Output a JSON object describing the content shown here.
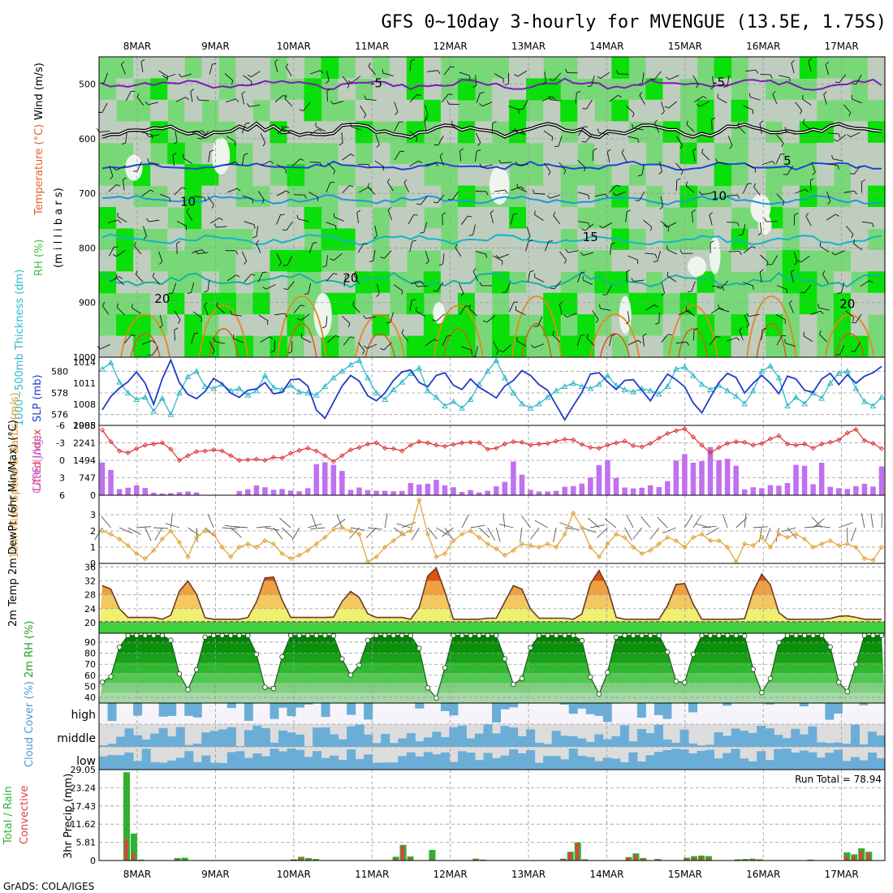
{
  "title": "GFS 0~10day 3-hourly for MVENGUE (13.5E, 1.75S)",
  "credit": "GrADS: COLA/IGES",
  "run_total_label": "Run Total = 78.94",
  "colors": {
    "rh_light": "#78d878",
    "rh_bright": "#00e000",
    "rh_dark": "#22a022",
    "rh_gray": "#c4ccc4",
    "temp_zero": "#000000",
    "temp_purple": "#7a1fb0",
    "temp_blue": "#1e46d0",
    "temp_sky": "#1e96e0",
    "temp_cyan": "#14b4c8",
    "temp_teal": "#14b49a",
    "temp_orange": "#e08a1e",
    "thickness": "#30b8c8",
    "slp": "#1e3cc8",
    "lifted_index": "#e03030",
    "cape": "#c070f0",
    "wind10": "#e0a030",
    "temp_fill_high": "#e05010",
    "temp_fill_mid": "#f0a040",
    "temp_fill_low": "#f0f070",
    "temp_green": "#40d040",
    "rh2m_dark": "#008800",
    "rh2m_light": "#a8e8a8",
    "cloud": "#6aaed8",
    "cloud_bg": "#dcdcdc",
    "precip_total": "#30b030",
    "precip_conv": "#e04040"
  },
  "chart_data": [
    {
      "panel": "upper-air",
      "type": "heatmap",
      "x_dates": [
        "8MAR",
        "9MAR",
        "10MAR",
        "11MAR",
        "12MAR",
        "13MAR",
        "14MAR",
        "15MAR",
        "16MAR",
        "17MAR"
      ],
      "ylabel_rh": "RH (%)",
      "ylabel_temp": "Temperature (°C)",
      "ylabel_wind": "Wind (m/s)",
      "ylabel_pressure": "(m i l l i b a r s)",
      "yticks": [
        500,
        600,
        700,
        800,
        900,
        1000
      ],
      "ylim": [
        1000,
        450
      ],
      "contour_labels": [
        {
          "text": "-5",
          "t": 32,
          "p": 498
        },
        {
          "text": "-5",
          "t": 72,
          "p": 497
        },
        {
          "text": "5",
          "t": 80,
          "p": 640
        },
        {
          "text": "10",
          "t": 10,
          "p": 715
        },
        {
          "text": "10",
          "t": 72,
          "p": 705
        },
        {
          "text": "15",
          "t": 57,
          "p": 780
        },
        {
          "text": "20",
          "t": 7,
          "p": 893
        },
        {
          "text": "20",
          "t": 29,
          "p": 855
        },
        {
          "text": "20",
          "t": 87,
          "p": 903
        }
      ]
    },
    {
      "panel": "thickness-slp",
      "type": "line",
      "ylabel_thickness": "1000~500mb Thickness (dm)",
      "ylabel_slp": "SLP (mb)",
      "thickness_ticks": [
        576,
        578,
        580
      ],
      "slp_ticks": [
        1005,
        1008,
        1011,
        1014
      ],
      "thickness_ylim": [
        575,
        581.3
      ],
      "slp_ylim": [
        1005,
        1014.7
      ],
      "thickness": [
        580.2,
        580.8,
        579.0,
        578.0,
        577.4,
        577.6,
        576.3,
        577.5,
        576.0,
        578.0,
        579.5,
        580.0,
        578.6,
        578.4,
        578.8,
        578.2,
        578.4,
        577.8,
        578.2,
        579.6,
        578.5,
        578.3,
        578.7,
        578.1,
        578.0,
        577.8,
        578.6,
        579.4,
        580.0,
        580.6,
        581.0,
        579.4,
        578.0,
        577.4,
        578.3,
        579.0,
        579.8,
        580.3,
        578.2,
        577.6,
        576.8,
        577.2,
        576.6,
        577.4,
        578.8,
        580.0,
        581.0,
        579.4,
        578.0,
        577.0,
        576.6,
        577.0,
        577.6,
        578.2,
        578.6,
        578.9,
        578.6,
        578.4,
        578.8,
        579.6,
        578.7,
        578.3,
        578.1,
        578.4,
        578.2,
        577.9,
        578.6,
        580.2,
        580.4,
        579.6,
        578.8,
        578.3,
        578.7,
        578.2,
        577.7,
        577.0,
        578.2,
        580.0,
        580.5,
        579.4,
        576.8,
        577.6,
        577.0,
        578.0,
        577.5,
        578.9,
        579.8,
        580.0,
        578.4,
        577.2,
        576.8,
        577.6
      ],
      "slp": [
        1007.2,
        1009.1,
        1010.3,
        1011.2,
        1012.6,
        1011.0,
        1008.0,
        1011.6,
        1014.3,
        1011.1,
        1009.4,
        1008.8,
        1009.8,
        1011.7,
        1010.9,
        1009.6,
        1009.0,
        1010.0,
        1010.2,
        1011.1,
        1009.5,
        1009.7,
        1011.5,
        1011.6,
        1010.6,
        1007.2,
        1006.0,
        1008.3,
        1010.6,
        1012.1,
        1011.3,
        1009.2,
        1008.5,
        1009.6,
        1011.4,
        1012.6,
        1012.9,
        1011.1,
        1010.5,
        1012.1,
        1012.5,
        1010.7,
        1010.1,
        1011.6,
        1010.4,
        1009.7,
        1008.9,
        1010.6,
        1011.4,
        1012.8,
        1012.1,
        1010.8,
        1010.0,
        1007.9,
        1005.8,
        1007.8,
        1009.7,
        1012.3,
        1012.5,
        1011.2,
        1010.1,
        1011.4,
        1011.5,
        1010.0,
        1008.5,
        1010.5,
        1012.3,
        1011.5,
        1010.5,
        1008.2,
        1006.8,
        1009.0,
        1011.1,
        1012.4,
        1011.8,
        1009.6,
        1011.0,
        1012.1,
        1011.0,
        1009.5,
        1012.0,
        1011.6,
        1010.0,
        1009.7,
        1011.6,
        1012.4,
        1010.8,
        1012.2,
        1011.0,
        1012.0,
        1012.5,
        1013.4
      ]
    },
    {
      "panel": "instability",
      "type": "bar",
      "ylabel_li": "Lifted Index",
      "ylabel_cape": "CAPE (J/kg)",
      "li_ticks": [
        -6,
        -3,
        0,
        3,
        6
      ],
      "cape_ticks": [
        0,
        747,
        1494,
        2241,
        2988
      ],
      "li_ylim": [
        6,
        -6
      ],
      "cape_ylim": [
        0,
        2988
      ],
      "cape": [
        1400,
        1080,
        260,
        320,
        420,
        310,
        110,
        70,
        90,
        130,
        160,
        120,
        0,
        0,
        0,
        0,
        180,
        260,
        420,
        340,
        230,
        270,
        200,
        170,
        300,
        1330,
        1410,
        1300,
        1040,
        230,
        330,
        220,
        190,
        190,
        170,
        180,
        520,
        460,
        490,
        660,
        420,
        340,
        140,
        220,
        120,
        190,
        380,
        570,
        1440,
        880,
        230,
        160,
        160,
        190,
        360,
        390,
        500,
        770,
        1290,
        1510,
        740,
        330,
        290,
        320,
        420,
        350,
        600,
        1480,
        1760,
        1390,
        1460,
        2060,
        1500,
        1560,
        1260,
        250,
        340,
        300,
        430,
        410,
        520,
        1300,
        1260,
        470,
        1390,
        360,
        300,
        270,
        390,
        490,
        370,
        1230
      ],
      "lifted_index": [
        -5.2,
        -3.2,
        -1.6,
        -1.3,
        -2.0,
        -2.6,
        -2.8,
        -3.0,
        -1.9,
        0.0,
        -0.8,
        -1.5,
        -1.6,
        -1.8,
        -1.6,
        -0.8,
        0.0,
        -0.1,
        -0.2,
        0.0,
        -0.5,
        -0.4,
        -1.2,
        -1.7,
        -2.1,
        -1.6,
        -0.8,
        0.2,
        -0.8,
        -1.8,
        -2.2,
        -2.8,
        -3.0,
        -2.1,
        -2.0,
        -1.6,
        -2.6,
        -3.2,
        -3.0,
        -2.6,
        -2.4,
        -2.7,
        -3.0,
        -3.1,
        -3.0,
        -1.9,
        -2.1,
        -2.8,
        -3.2,
        -3.1,
        -2.6,
        -2.8,
        -2.9,
        -3.3,
        -3.6,
        -3.5,
        -2.7,
        -2.2,
        -2.1,
        -2.6,
        -3.0,
        -3.3,
        -2.5,
        -2.3,
        -2.9,
        -3.8,
        -4.6,
        -5.1,
        -5.4,
        -4.0,
        -2.6,
        -1.3,
        -2.2,
        -2.9,
        -3.2,
        -3.1,
        -2.6,
        -2.9,
        -3.7,
        -4.2,
        -2.8,
        -2.6,
        -2.8,
        -2.1,
        -2.8,
        -3.1,
        -3.5,
        -4.7,
        -5.3,
        -3.4,
        -2.9,
        -2.0
      ]
    },
    {
      "panel": "wind10m",
      "type": "line",
      "ylabel": "10m Wind Speed & Barbs (m/s)",
      "yticks": [
        0,
        1,
        2,
        3
      ],
      "ylim": [
        0,
        4
      ],
      "speed": [
        2.0,
        1.8,
        1.5,
        1.1,
        0.6,
        0.3,
        0.8,
        1.5,
        2.0,
        1.3,
        0.4,
        1.6,
        2.0,
        1.8,
        1.0,
        0.4,
        1.0,
        1.2,
        1.0,
        1.4,
        1.2,
        0.6,
        0.3,
        0.5,
        0.8,
        1.2,
        1.6,
        2.1,
        2.2,
        2.0,
        1.8,
        0.1,
        0.4,
        1.0,
        1.4,
        1.8,
        2.0,
        3.9,
        1.8,
        0.4,
        0.6,
        1.4,
        1.8,
        2.0,
        1.6,
        1.2,
        0.9,
        0.5,
        0.8,
        1.2,
        1.1,
        1.0,
        1.2,
        1.0,
        1.8,
        3.1,
        2.2,
        1.0,
        0.4,
        1.2,
        1.8,
        1.6,
        1.0,
        0.6,
        0.8,
        1.2,
        1.6,
        1.4,
        1.0,
        1.6,
        1.8,
        1.4,
        1.4,
        1.0,
        0.1,
        1.2,
        1.1,
        1.6,
        1.0,
        1.8,
        1.6,
        1.8,
        1.5,
        1.0,
        1.2,
        1.4,
        1.1,
        1.2,
        1.0,
        0.3,
        0.2,
        1.0
      ]
    },
    {
      "panel": "temp2m",
      "type": "area",
      "ylabel": "2m Temp 2m DewPt (6hr Min/Max) (°C)",
      "yticks": [
        20,
        24,
        28,
        32,
        36
      ],
      "ylim": [
        17,
        37
      ],
      "daily_max": [
        31,
        32,
        34,
        29,
        36,
        31,
        35,
        32,
        34,
        22
      ],
      "daily_min": [
        21.5,
        21,
        21.5,
        21.5,
        21,
        21.3,
        21,
        21,
        21,
        21
      ],
      "dewpoint": 20.3
    },
    {
      "panel": "rh2m",
      "type": "area",
      "ylabel": "2m RH (%)",
      "yticks": [
        40,
        50,
        60,
        70,
        80,
        90
      ],
      "ylim": [
        35,
        98
      ],
      "daily_min": [
        52,
        47,
        44,
        60,
        38,
        50,
        43,
        50,
        44
      ],
      "max_rh": 96
    },
    {
      "panel": "cloud",
      "type": "bar",
      "ylabel": "Cloud Cover (%)",
      "levels": [
        "high",
        "middle",
        "low"
      ]
    },
    {
      "panel": "precip",
      "type": "bar",
      "ylabel_total": "Total / Rain",
      "ylabel_conv": "Convective",
      "ylabel_precip": "3hr Precip (mm)",
      "yticks": [
        0,
        5.81,
        11.62,
        17.43,
        23.24,
        29.05
      ],
      "ylim": [
        0,
        29.05
      ],
      "bars": [
        {
          "i": 2,
          "total": 28.2,
          "conv": 6.8
        },
        {
          "i": 3,
          "total": 8.6,
          "conv": 2.4
        },
        {
          "i": 4,
          "total": 0.3,
          "conv": 0.2
        },
        {
          "i": 9,
          "total": 0.8,
          "conv": 0.3
        },
        {
          "i": 10,
          "total": 0.9,
          "conv": 0.2
        },
        {
          "i": 25,
          "total": 0.4,
          "conv": 0.3
        },
        {
          "i": 26,
          "total": 1.2,
          "conv": 0.9
        },
        {
          "i": 27,
          "total": 0.8,
          "conv": 0.5
        },
        {
          "i": 28,
          "total": 0.5,
          "conv": 0.3
        },
        {
          "i": 39,
          "total": 1.2,
          "conv": 0.8
        },
        {
          "i": 40,
          "total": 5.0,
          "conv": 4.6
        },
        {
          "i": 41,
          "total": 1.3,
          "conv": 0.7
        },
        {
          "i": 44,
          "total": 3.4,
          "conv": 0.4
        },
        {
          "i": 50,
          "total": 0.6,
          "conv": 0.3
        },
        {
          "i": 51,
          "total": 0.3,
          "conv": 0.2
        },
        {
          "i": 62,
          "total": 0.6,
          "conv": 0.5
        },
        {
          "i": 63,
          "total": 2.8,
          "conv": 2.6
        },
        {
          "i": 64,
          "total": 5.8,
          "conv": 5.4
        },
        {
          "i": 65,
          "total": 0.4,
          "conv": 0.3
        },
        {
          "i": 71,
          "total": 1.1,
          "conv": 0.9
        },
        {
          "i": 72,
          "total": 2.3,
          "conv": 1.8
        },
        {
          "i": 73,
          "total": 0.8,
          "conv": 0.6
        },
        {
          "i": 75,
          "total": 0.5,
          "conv": 0.4
        },
        {
          "i": 79,
          "total": 0.9,
          "conv": 0.6
        },
        {
          "i": 80,
          "total": 1.4,
          "conv": 1.0
        },
        {
          "i": 81,
          "total": 1.6,
          "conv": 1.2
        },
        {
          "i": 82,
          "total": 1.4,
          "conv": 0.9
        },
        {
          "i": 86,
          "total": 0.4,
          "conv": 0.2
        },
        {
          "i": 87,
          "total": 0.5,
          "conv": 0.3
        },
        {
          "i": 88,
          "total": 0.6,
          "conv": 0.4
        },
        {
          "i": 89,
          "total": 0.4,
          "conv": 0.3
        },
        {
          "i": 96,
          "total": 0.3,
          "conv": 0.2
        },
        {
          "i": 101,
          "total": 2.6,
          "conv": 1.5
        },
        {
          "i": 102,
          "total": 2.0,
          "conv": 1.5
        },
        {
          "i": 103,
          "total": 3.9,
          "conv": 3.2
        },
        {
          "i": 104,
          "total": 2.8,
          "conv": 2.4
        }
      ]
    }
  ]
}
